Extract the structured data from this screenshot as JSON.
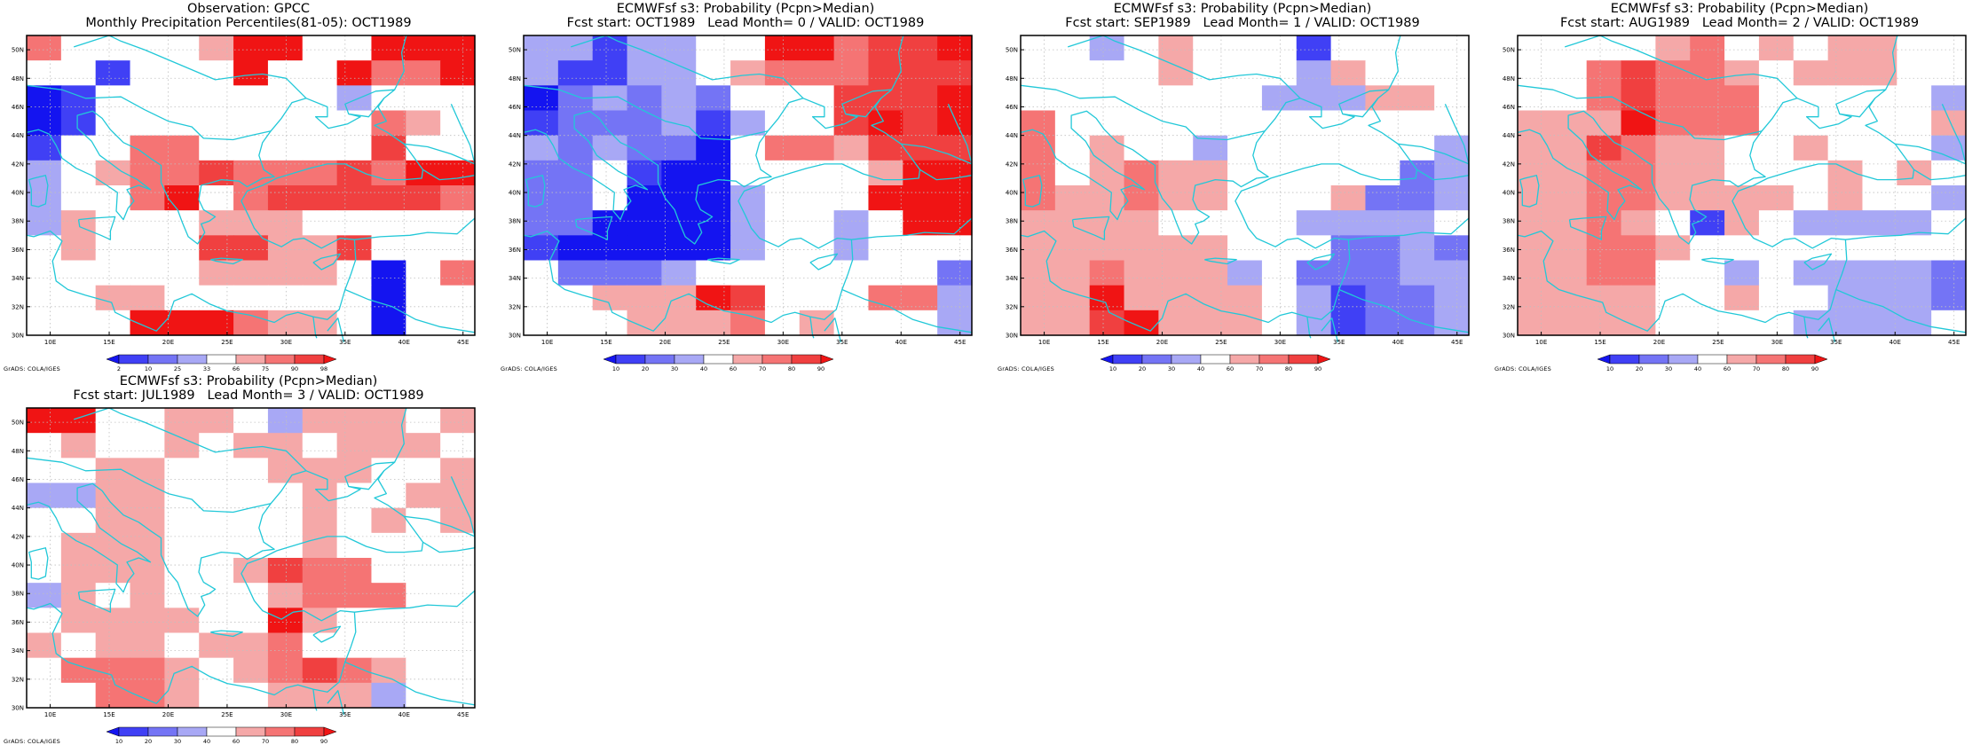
{
  "palettes": {
    "obs": {
      "colors": [
        "#1414f0",
        "#4040f5",
        "#7474f5",
        "#a8a8f5",
        "#ffffff",
        "#f5a8a8",
        "#f57474",
        "#f04040",
        "#f01414"
      ],
      "ticks": [
        "2",
        "10",
        "25",
        "33",
        "66",
        "75",
        "90",
        "98"
      ]
    },
    "prob": {
      "colors": [
        "#1414f0",
        "#4040f5",
        "#7474f5",
        "#a8a8f5",
        "#ffffff",
        "#f5a8a8",
        "#f57474",
        "#f04040",
        "#f01414"
      ],
      "ticks": [
        "10",
        "20",
        "30",
        "40",
        "60",
        "70",
        "80",
        "90"
      ]
    }
  },
  "map": {
    "lon_range": [
      8,
      46
    ],
    "lat_range": [
      30,
      51
    ],
    "lon_ticks": [
      "10E",
      "15E",
      "20E",
      "25E",
      "30E",
      "35E",
      "40E",
      "45E"
    ],
    "lat_ticks": [
      "30N",
      "32N",
      "34N",
      "36N",
      "38N",
      "40N",
      "42N",
      "44N",
      "46N",
      "48N",
      "50N"
    ],
    "coast_color": "#22c8d8",
    "grid": true
  },
  "panels": [
    {
      "id": "obs",
      "title1": "Observation: GPCC",
      "title2": "Monthly Precipitation Percentiles(81-05): OCT1989",
      "palette": "obs",
      "credit": "GrADS: COLA/IGES",
      "grid": [
        "6444458844888",
        "4414448448668",
        "0144444443444",
        "0144444444654",
        "1446644444744",
        "3456676667688",
        "3446846777776",
        "3544455544444",
        "4544477557444",
        "4444455554046",
        "4455444444044",
        "4448886554044"
      ]
    },
    {
      "id": "lead0",
      "title1": "ECMWFsf s3: Probability (Pcpn>Median)",
      "title2": "Fcst start: OCT1989   Lead Month= 0 / VALID: OCT1989",
      "palette": "prob",
      "credit": "GrADS: COLA/IGES",
      "grid": [
        "3313344886778",
        "3113345666777",
        "0232324447778",
        "1222313447878",
        "3232204665777",
        "2241004444588",
        "2240003444888",
        "2200003443488",
        "1000003443444",
        "4222344444442",
        "4455587444663",
        "4445556454443"
      ]
    },
    {
      "id": "lead1",
      "title1": "ECMWFsf s3: Probability (Pcpn>Median)",
      "title2": "Fcst start: SEP1989   Lead Month= 1 / VALID: OCT1989",
      "palette": "prob",
      "credit": "GrADS: COLA/IGES",
      "grid": [
        "4434544414444",
        "4444544435444",
        "4444444333554",
        "6444444444444",
        "6454434444443",
        "6456554444423",
        "6556554445223",
        "5555444433334",
        "5555554442232",
        "5565553422233",
        "5585555431223",
        "5578555431223"
      ]
    },
    {
      "id": "lead2",
      "title1": "ECMWFsf s3: Probability (Pcpn>Median)",
      "title2": "Fcst start: AUG1989   Lead Month= 2 / VALID: OCT1989",
      "palette": "prob",
      "credit": "GrADS: COLA/IGES",
      "grid": [
        "4444564545544",
        "4467665455544",
        "4467666444443",
        "5558666444445",
        "5576554454443",
        "5566554445454",
        "5566555545443",
        "5565415433334",
        "5566544444444",
        "5566443433332",
        "5555445443332",
        "5555444433334"
      ]
    },
    {
      "id": "lead3",
      "title1": "ECMWFsf s3: Probability (Pcpn>Median)",
      "title2": "Fcst start: JUL1989   Lead Month= 3 / VALID: OCT1989",
      "palette": "prob",
      "credit": "GrADS: COLA/IGES",
      "grid": [
        "8844554355545",
        "4544545545554",
        "4455444555445",
        "3355444454455",
        "4455444454545",
        "4555444454444",
        "4555445766444",
        "3545444566644",
        "4555544854444",
        "5455455644444",
        "4666545676544",
        "4466544555344"
      ]
    }
  ]
}
